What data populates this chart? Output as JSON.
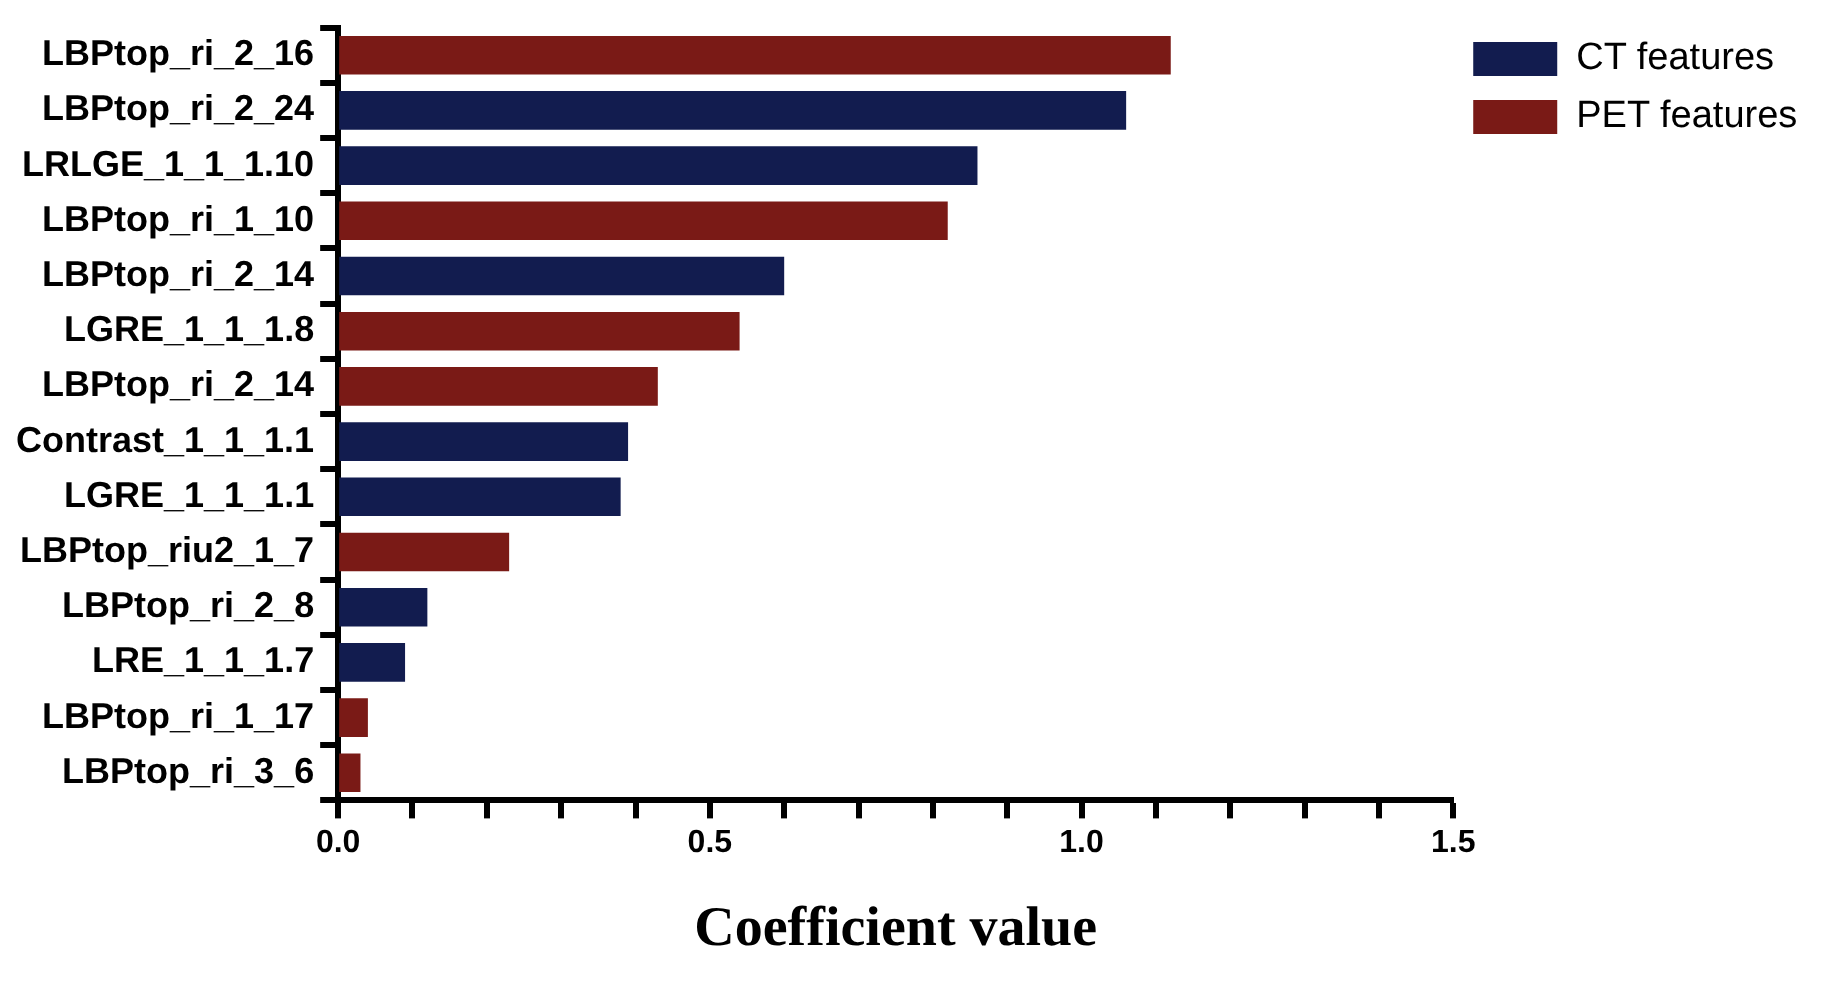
{
  "chart_data": {
    "type": "bar",
    "orientation": "horizontal",
    "stacked": true,
    "xlabel": "Coefficient value",
    "categories": [
      "LBPtop_ri_2_16",
      "LBPtop_ri_2_24",
      "LRLGE_1_1_1.10",
      "LBPtop_ri_1_10",
      "LBPtop_ri_2_14",
      "LGRE_1_1_1.8",
      "LBPtop_ri_2_14",
      "Contrast_1_1_1.1",
      "LGRE_1_1_1.1",
      "LBPtop_riu2_1_7",
      "LBPtop_ri_2_8",
      "LRE_1_1_1.7",
      "LBPtop_ri_1_17",
      "LBPtop_ri_3_6"
    ],
    "series": [
      {
        "name": "CT features",
        "color": "#121c4f",
        "values": [
          null,
          1.06,
          0.86,
          null,
          0.6,
          null,
          null,
          0.39,
          0.38,
          null,
          0.12,
          0.09,
          null,
          null
        ]
      },
      {
        "name": "PET features",
        "color": "#7a1a16",
        "values": [
          1.12,
          null,
          null,
          0.82,
          null,
          0.54,
          0.43,
          null,
          null,
          0.23,
          null,
          null,
          0.04,
          0.03
        ]
      }
    ],
    "xlim": [
      0,
      1.5
    ],
    "xticks": [
      {
        "value": 0,
        "label": "0.0"
      },
      {
        "value": 0.1,
        "label": null
      },
      {
        "value": 0.2,
        "label": null
      },
      {
        "value": 0.3,
        "label": null
      },
      {
        "value": 0.4,
        "label": null
      },
      {
        "value": 0.5,
        "label": "0.5"
      },
      {
        "value": 0.6,
        "label": null
      },
      {
        "value": 0.7,
        "label": null
      },
      {
        "value": 0.8,
        "label": null
      },
      {
        "value": 0.9,
        "label": null
      },
      {
        "value": 1,
        "label": "1.0"
      },
      {
        "value": 1.1,
        "label": null
      },
      {
        "value": 1.2,
        "label": null
      },
      {
        "value": 1.3,
        "label": null
      },
      {
        "value": 1.4,
        "label": null
      },
      {
        "value": 1.5,
        "label": "1.5"
      }
    ],
    "grid": false,
    "legend": "top right"
  }
}
